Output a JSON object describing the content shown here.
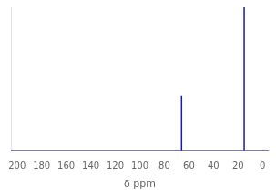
{
  "chart_data": {
    "type": "stem",
    "xlabel": "δ ppm",
    "x": [
      66,
      15
    ],
    "values": [
      0.58,
      1.5
    ],
    "baseline": 0,
    "color": "#1a1aaa",
    "xlim": [
      205,
      -5
    ],
    "xticks": [
      200,
      180,
      160,
      140,
      120,
      100,
      80,
      60,
      40,
      20,
      0
    ],
    "ylim": [
      0,
      1.5
    ],
    "tick_labels": "x",
    "grid": false
  }
}
